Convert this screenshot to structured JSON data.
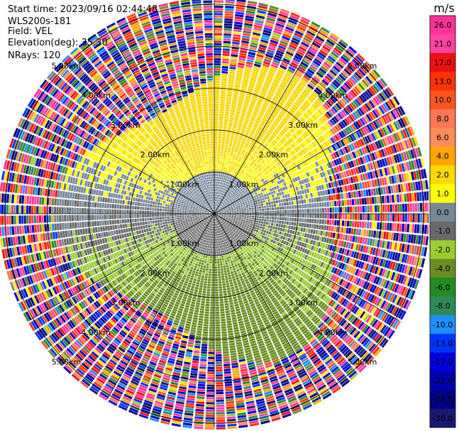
{
  "header": {
    "start_time": "Start time: 2023/09/16 02:44:48",
    "instrument": "WLS200s-181",
    "field": "Field: VEL",
    "elevation": "Elevation(deg): 35.30",
    "nrays": "NRays: 120"
  },
  "chart_data": {
    "type": "heatmap",
    "projection": "polar-ppi",
    "field": "VEL",
    "units": "m/s",
    "nrays": 120,
    "range_rings_km": [
      1.0,
      2.0,
      3.0,
      4.0,
      5.0
    ],
    "ring_labels": [
      "1.00km",
      "2.00km",
      "3.00km",
      "4.00km",
      "5.00km"
    ],
    "max_range_km": 5.1,
    "spokes_deg": [
      0,
      30,
      60,
      90,
      120,
      150,
      180,
      210,
      240,
      270,
      300,
      330
    ],
    "colorbar": {
      "units_label": "m/s",
      "tick_labels": [
        "26.0",
        "21.0",
        "17.0",
        "13.0",
        "10.0",
        "8.0",
        "6.0",
        "4.0",
        "2.0",
        "1.0",
        "0.0",
        "-1.0",
        "-2.0",
        "-4.0",
        "-6.0",
        "-8.0",
        "-10.0",
        "-13.0",
        "-17.0",
        "-21.0",
        "-26.0",
        "-30.0"
      ],
      "bins": [
        {
          "min": 26,
          "max": 30,
          "color": "#ff3399"
        },
        {
          "min": 21,
          "max": 26,
          "color": "#ff44a0"
        },
        {
          "min": 17,
          "max": 21,
          "color": "#ee1111"
        },
        {
          "min": 13,
          "max": 17,
          "color": "#ff3300"
        },
        {
          "min": 10,
          "max": 13,
          "color": "#ff5522"
        },
        {
          "min": 8,
          "max": 10,
          "color": "#ff7755"
        },
        {
          "min": 6,
          "max": 8,
          "color": "#ff8c5a"
        },
        {
          "min": 4,
          "max": 6,
          "color": "#ffa500"
        },
        {
          "min": 2,
          "max": 4,
          "color": "#ffd700"
        },
        {
          "min": 1,
          "max": 2,
          "color": "#ffff00"
        },
        {
          "min": 0,
          "max": 1,
          "color": "#778899"
        },
        {
          "min": -1,
          "max": 0,
          "color": "#696969"
        },
        {
          "min": -2,
          "max": -1,
          "color": "#9acd32"
        },
        {
          "min": -4,
          "max": -2,
          "color": "#6b8e23"
        },
        {
          "min": -6,
          "max": -4,
          "color": "#228b22"
        },
        {
          "min": -8,
          "max": -6,
          "color": "#2e8b57"
        },
        {
          "min": -10,
          "max": -8,
          "color": "#1e90ff"
        },
        {
          "min": -13,
          "max": -10,
          "color": "#0033ff"
        },
        {
          "min": -17,
          "max": -13,
          "color": "#0000dd"
        },
        {
          "min": -21,
          "max": -17,
          "color": "#0000aa"
        },
        {
          "min": -26,
          "max": -21,
          "color": "#000080"
        },
        {
          "min": -30,
          "max": -26,
          "color": "#191970"
        }
      ]
    },
    "velocity_pattern": {
      "positive_sector_center_deg": 0,
      "negative_sector_center_deg": 180,
      "amplitude_ms": 3.2,
      "clean_range_km": 3.8,
      "noise_range_km": [
        3.8,
        5.1
      ]
    }
  }
}
